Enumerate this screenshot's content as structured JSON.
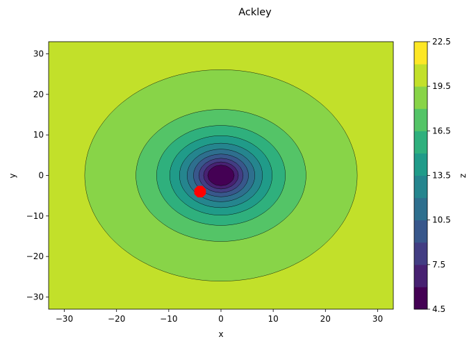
{
  "chart_data": {
    "type": "contour",
    "title": "Ackley",
    "xlabel": "x",
    "ylabel": "y",
    "xlim": [
      -33,
      33
    ],
    "ylim": [
      -33,
      33
    ],
    "xticks": [
      -30,
      -20,
      -10,
      0,
      10,
      20,
      30
    ],
    "yticks": [
      -30,
      -20,
      -10,
      0,
      10,
      20,
      30
    ],
    "function": "ackley",
    "colormap": "viridis",
    "colorbar": {
      "label": "z",
      "range": [
        4.5,
        22.5
      ],
      "levels": [
        4.5,
        6.0,
        7.5,
        9.0,
        10.5,
        12.0,
        13.5,
        15.0,
        16.5,
        18.0,
        19.5,
        21.0,
        22.5
      ],
      "ticks": [
        4.5,
        7.5,
        10.5,
        13.5,
        16.5,
        19.5,
        22.5
      ]
    },
    "marker": {
      "x": -4,
      "y": -4,
      "color": "#ff0000",
      "shape": "octagon"
    }
  }
}
